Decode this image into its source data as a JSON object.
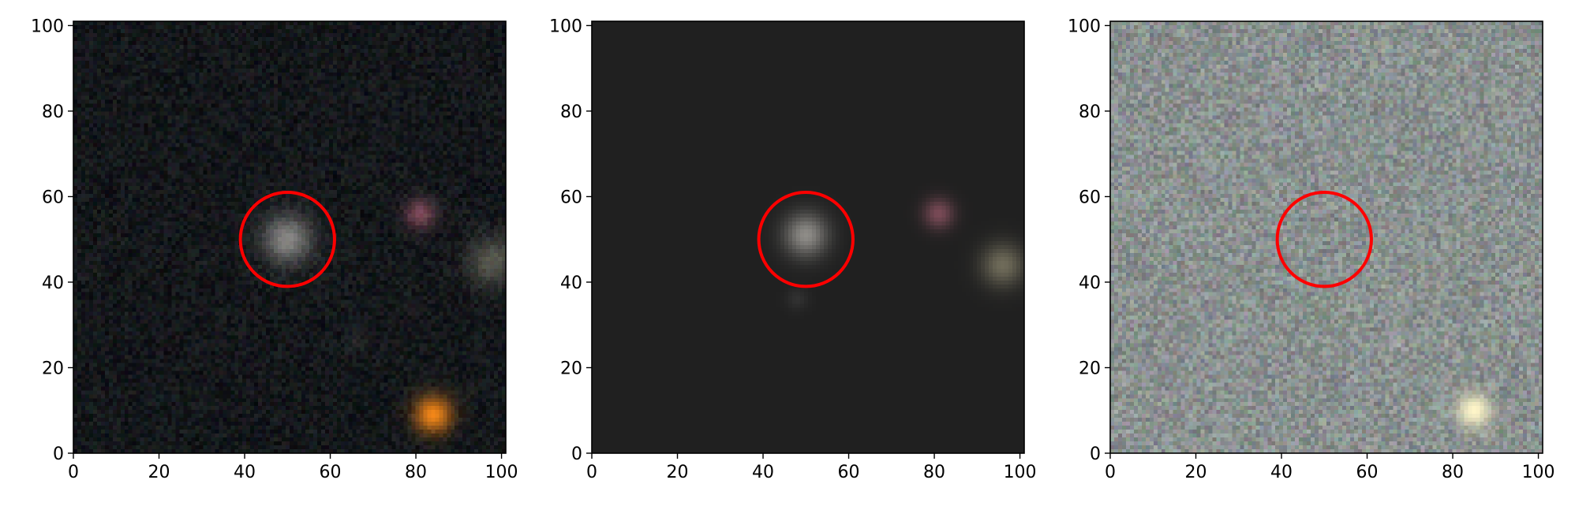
{
  "figure": {
    "panels": [
      {
        "kind": "image-rgb",
        "xlim": [
          0,
          101
        ],
        "ylim": [
          0,
          101
        ],
        "xticks": [
          0,
          20,
          40,
          60,
          80,
          100
        ],
        "yticks": [
          0,
          20,
          40,
          60,
          80,
          100
        ],
        "background": "#14171a",
        "noise_amplitude": 22,
        "circle": {
          "x": 50,
          "y": 50,
          "r": 11,
          "color": "#ff0000"
        },
        "sources": [
          {
            "x": 50,
            "y": 50,
            "sigma": 4,
            "color": "#e6e2dc",
            "intensity": 0.55
          },
          {
            "x": 81,
            "y": 56,
            "sigma": 2.5,
            "color": "#ff8aa8",
            "intensity": 0.45
          },
          {
            "x": 98,
            "y": 45,
            "sigma": 4,
            "color": "#d9d4b4",
            "intensity": 0.35
          },
          {
            "x": 84,
            "y": 9,
            "sigma": 3,
            "color": "#ff8c18",
            "intensity": 0.95
          },
          {
            "x": 66,
            "y": 27,
            "sigma": 1.5,
            "color": "#c8c8c8",
            "intensity": 0.12
          }
        ]
      },
      {
        "kind": "model",
        "xlim": [
          0,
          101
        ],
        "ylim": [
          0,
          101
        ],
        "xticks": [
          0,
          20,
          40,
          60,
          80,
          100
        ],
        "yticks": [
          0,
          20,
          40,
          60,
          80,
          100
        ],
        "background": "#202020",
        "noise_amplitude": 0,
        "circle": {
          "x": 50,
          "y": 50,
          "r": 11,
          "color": "#ff0000"
        },
        "sources": [
          {
            "x": 50,
            "y": 51,
            "sigma": 3.5,
            "color": "#e8e4dc",
            "intensity": 0.55
          },
          {
            "x": 81,
            "y": 56,
            "sigma": 2.5,
            "color": "#ff8aa8",
            "intensity": 0.4
          },
          {
            "x": 96,
            "y": 44,
            "sigma": 3.5,
            "color": "#e6dcb0",
            "intensity": 0.4
          },
          {
            "x": 48,
            "y": 36,
            "sigma": 1.8,
            "color": "#c8c8c8",
            "intensity": 0.1
          }
        ]
      },
      {
        "kind": "residual",
        "xlim": [
          0,
          101
        ],
        "ylim": [
          0,
          101
        ],
        "xticks": [
          0,
          20,
          40,
          60,
          80,
          100
        ],
        "yticks": [
          0,
          20,
          40,
          60,
          80,
          100
        ],
        "background": "#8a9190",
        "noise_amplitude": 42,
        "circle": {
          "x": 50,
          "y": 50,
          "r": 11,
          "color": "#ff0000"
        },
        "sources": [
          {
            "x": 85,
            "y": 10,
            "sigma": 2.8,
            "color": "#fff6c8",
            "intensity": 1.0
          },
          {
            "x": 67,
            "y": 26,
            "sigma": 1.3,
            "color": "#d8d8c8",
            "intensity": 0.25
          },
          {
            "x": 2,
            "y": 17,
            "sigma": 1.5,
            "color": "#d8d8c8",
            "intensity": 0.2
          }
        ]
      }
    ]
  }
}
